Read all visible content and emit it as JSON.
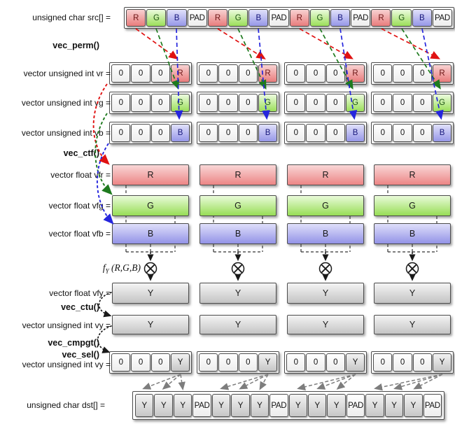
{
  "labels": {
    "src": "unsigned char src[] =",
    "vec_perm": "vec_perm()",
    "vr": "vector unsigned int vr =",
    "vg": "vector unsigned int vg =",
    "vb": "vector unsigned int vb =",
    "vec_ctf": "vec_ctf()",
    "vfr": "vector float vfr =",
    "vfg": "vector float vfg =",
    "vfb": "vector float vfb =",
    "fy_f": "f",
    "fy_sub": "Y",
    "fy_args": " (R,G,B)",
    "vfy": "vector float vfy =",
    "vec_ctu": "vec_ctu()",
    "vy": "vector unsigned int vy =",
    "vec_cmpgt": "vec_cmpgt()",
    "vec_sel": "vec_sel()",
    "vy2": "vector unsigned int vy =",
    "dst": "unsigned char dst[] ="
  },
  "bars": {
    "vfr": "R",
    "vfg": "G",
    "vfb": "B",
    "vfy": "Y",
    "vy": "Y"
  },
  "cells": {
    "src": [
      {
        "t": "R",
        "c": "r"
      },
      {
        "t": "G",
        "c": "g"
      },
      {
        "t": "B",
        "c": "b"
      },
      {
        "t": "PAD",
        "c": "w"
      },
      {
        "t": "R",
        "c": "r"
      },
      {
        "t": "G",
        "c": "g"
      },
      {
        "t": "B",
        "c": "b"
      },
      {
        "t": "PAD",
        "c": "w"
      },
      {
        "t": "R",
        "c": "r"
      },
      {
        "t": "G",
        "c": "g"
      },
      {
        "t": "B",
        "c": "b"
      },
      {
        "t": "PAD",
        "c": "w"
      },
      {
        "t": "R",
        "c": "r"
      },
      {
        "t": "G",
        "c": "g"
      },
      {
        "t": "B",
        "c": "b"
      },
      {
        "t": "PAD",
        "c": "w"
      }
    ],
    "vr_pattern": [
      {
        "t": "0",
        "c": "w"
      },
      {
        "t": "0",
        "c": "w"
      },
      {
        "t": "0",
        "c": "w"
      },
      {
        "t": "R",
        "c": "r"
      }
    ],
    "vg_pattern": [
      {
        "t": "0",
        "c": "w"
      },
      {
        "t": "0",
        "c": "w"
      },
      {
        "t": "0",
        "c": "w"
      },
      {
        "t": "G",
        "c": "g"
      }
    ],
    "vb_pattern": [
      {
        "t": "0",
        "c": "w"
      },
      {
        "t": "0",
        "c": "w"
      },
      {
        "t": "0",
        "c": "w"
      },
      {
        "t": "B",
        "c": "b"
      }
    ],
    "vy_pattern": [
      {
        "t": "0",
        "c": "w"
      },
      {
        "t": "0",
        "c": "w"
      },
      {
        "t": "0",
        "c": "w"
      },
      {
        "t": "Y",
        "c": "y"
      }
    ],
    "dst": [
      {
        "t": "Y",
        "c": "y"
      },
      {
        "t": "Y",
        "c": "y"
      },
      {
        "t": "Y",
        "c": "y"
      },
      {
        "t": "PAD",
        "c": "w"
      },
      {
        "t": "Y",
        "c": "y"
      },
      {
        "t": "Y",
        "c": "y"
      },
      {
        "t": "Y",
        "c": "y"
      },
      {
        "t": "PAD",
        "c": "w"
      },
      {
        "t": "Y",
        "c": "y"
      },
      {
        "t": "Y",
        "c": "y"
      },
      {
        "t": "Y",
        "c": "y"
      },
      {
        "t": "PAD",
        "c": "w"
      },
      {
        "t": "Y",
        "c": "y"
      },
      {
        "t": "Y",
        "c": "y"
      },
      {
        "t": "Y",
        "c": "y"
      },
      {
        "t": "PAD",
        "c": "w"
      }
    ]
  },
  "colors": {
    "red": "#e01212",
    "green": "#1e7a1e",
    "blue": "#2525dd",
    "black": "#1a1a1a",
    "gray": "#7d7d7d",
    "connector": "#333333",
    "cell_red": "#e97c7c",
    "cell_green": "#9bdf59",
    "cell_blue": "#9697e8",
    "cell_gray": "#c6c6c6",
    "border": "#4d4d4d"
  }
}
